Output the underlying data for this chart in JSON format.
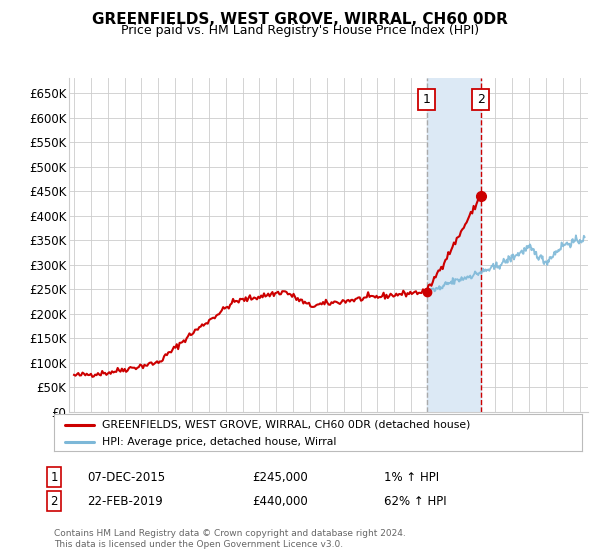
{
  "title": "GREENFIELDS, WEST GROVE, WIRRAL, CH60 0DR",
  "subtitle": "Price paid vs. HM Land Registry's House Price Index (HPI)",
  "ylabel_ticks": [
    "£0",
    "£50K",
    "£100K",
    "£150K",
    "£200K",
    "£250K",
    "£300K",
    "£350K",
    "£400K",
    "£450K",
    "£500K",
    "£550K",
    "£600K",
    "£650K"
  ],
  "ylim": [
    0,
    680000
  ],
  "xlim_start": 1994.7,
  "xlim_end": 2025.5,
  "sale1_date": 2015.92,
  "sale1_price": 245000,
  "sale1_label": "1",
  "sale2_date": 2019.13,
  "sale2_price": 440000,
  "sale2_label": "2",
  "legend_line1": "GREENFIELDS, WEST GROVE, WIRRAL, CH60 0DR (detached house)",
  "legend_line2": "HPI: Average price, detached house, Wirral",
  "footnote": "Contains HM Land Registry data © Crown copyright and database right 2024.\nThis data is licensed under the Open Government Licence v3.0.",
  "hpi_color": "#7db8d8",
  "price_color": "#cc0000",
  "sale_marker_color": "#cc0000",
  "vline1_color": "#aaaaaa",
  "vline2_color": "#cc0000",
  "highlight_color": "#dce9f5",
  "grid_color": "#cccccc",
  "background_color": "#ffffff",
  "label_box_color": "#cc0000"
}
